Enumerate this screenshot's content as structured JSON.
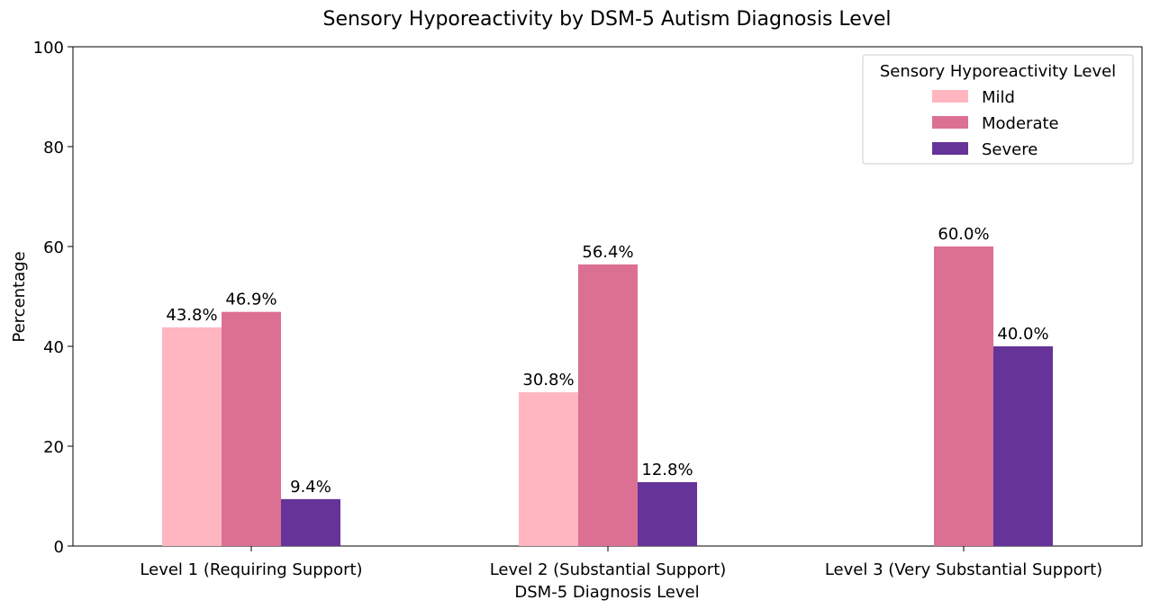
{
  "chart_data": {
    "type": "bar",
    "title": "Sensory Hyporeactivity by DSM-5 Autism Diagnosis Level",
    "xlabel": "DSM-5 Diagnosis Level",
    "ylabel": "Percentage",
    "ylim": [
      0,
      100
    ],
    "yticks": [
      "0",
      "20",
      "40",
      "60",
      "80",
      "100"
    ],
    "grid": false,
    "categories": [
      "Level 1 (Requiring Support)",
      "Level 2 (Substantial Support)",
      "Level 3 (Very Substantial Support)"
    ],
    "series": [
      {
        "name": "Mild",
        "color": "#ffb6c1",
        "values": [
          43.8,
          30.8,
          0
        ],
        "labels": [
          "43.8%",
          "30.8%",
          ""
        ]
      },
      {
        "name": "Moderate",
        "color": "#db7093",
        "values": [
          46.9,
          56.4,
          60.0
        ],
        "labels": [
          "46.9%",
          "56.4%",
          "60.0%"
        ]
      },
      {
        "name": "Severe",
        "color": "#663399",
        "values": [
          9.4,
          12.8,
          40.0
        ],
        "labels": [
          "9.4%",
          "12.8%",
          "40.0%"
        ]
      }
    ],
    "legend": {
      "title": "Sensory Hyporeactivity Level",
      "placement": "top-right"
    }
  }
}
